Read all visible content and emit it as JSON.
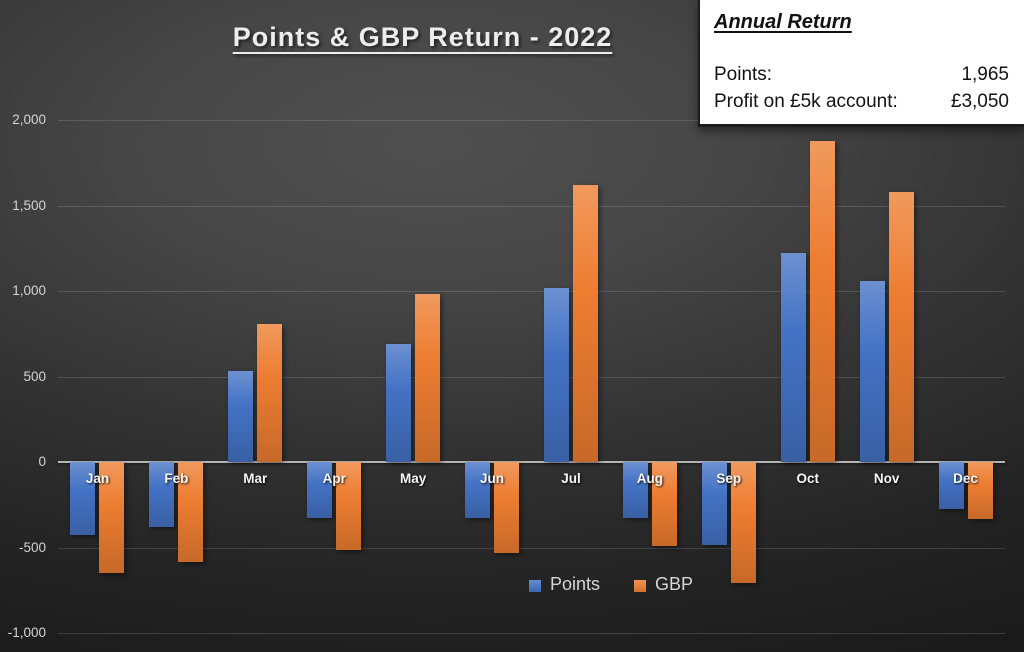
{
  "title": "Points & GBP Return - 2022",
  "annual_box": {
    "heading": "Annual Return",
    "rows": [
      {
        "label": "Points:",
        "value": "1,965"
      },
      {
        "label": "Profit on £5k account:",
        "value": "£3,050"
      }
    ]
  },
  "chart_data": {
    "type": "bar",
    "title": "Points & GBP Return - 2022",
    "categories": [
      "Jan",
      "Feb",
      "Mar",
      "Apr",
      "May",
      "Jun",
      "Jul",
      "Aug",
      "Sep",
      "Oct",
      "Nov",
      "Dec"
    ],
    "series": [
      {
        "name": "Points",
        "color": "#4472C4",
        "values": [
          -425,
          -380,
          530,
          -330,
          690,
          -330,
          1015,
          -325,
          -485,
          1220,
          1060,
          -275
        ]
      },
      {
        "name": "GBP",
        "color": "#ED7D31",
        "values": [
          -650,
          -585,
          805,
          -515,
          980,
          -535,
          1620,
          -490,
          -705,
          1880,
          1580,
          -335
        ]
      }
    ],
    "xlabel": "",
    "ylabel": "",
    "ylim": [
      -1000,
      2000
    ],
    "yticks": [
      {
        "value": 2000,
        "label": "2,000"
      },
      {
        "value": 1500,
        "label": "1,500"
      },
      {
        "value": 1000,
        "label": "1,000"
      },
      {
        "value": 500,
        "label": "500"
      },
      {
        "value": 0,
        "label": "0"
      },
      {
        "value": -500,
        "label": "-500"
      },
      {
        "value": -1000,
        "label": "-1,000"
      }
    ],
    "grid": true,
    "legend_position": "bottom-center"
  },
  "colors": {
    "points_blue": "#4472C4",
    "gbp_orange": "#ED7D31",
    "background_dark": "#333333",
    "panel_white": "#FFFFFF",
    "axis_text": "#D4D4D4"
  }
}
